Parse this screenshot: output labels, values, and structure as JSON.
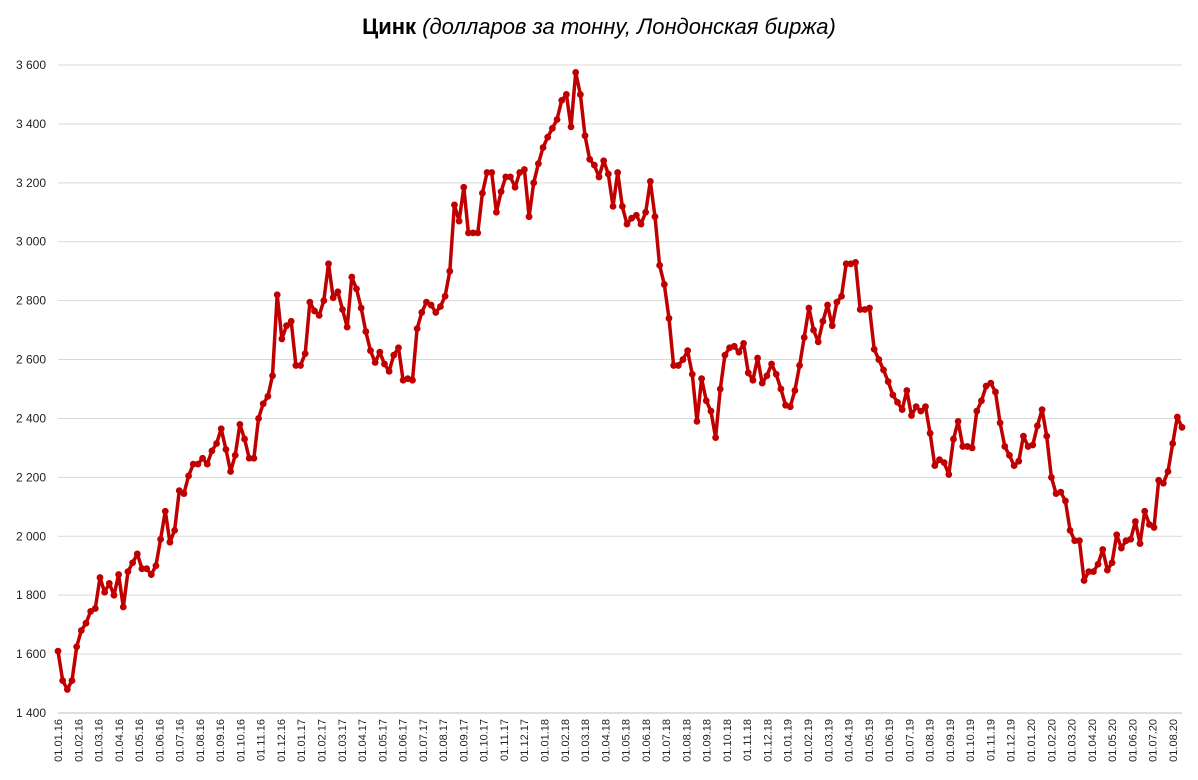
{
  "chart_data": {
    "type": "line",
    "title": "Цинк",
    "subtitle": "(долларов за тонну, Лондонская биржа)",
    "xlabel": "",
    "ylabel": "",
    "ylim": [
      1400,
      3600
    ],
    "y_ticks": [
      1400,
      1600,
      1800,
      2000,
      2200,
      2400,
      2600,
      2800,
      3000,
      3200,
      3400,
      3600
    ],
    "y_tick_labels": [
      "1 400",
      "1 600",
      "1 800",
      "2 000",
      "2 200",
      "2 400",
      "2 600",
      "2 800",
      "3 000",
      "3 200",
      "3 400",
      "3 600"
    ],
    "x_tick_labels": [
      "01.01.16",
      "01.02.16",
      "01.03.16",
      "01.04.16",
      "01.05.16",
      "01.06.16",
      "01.07.16",
      "01.08.16",
      "01.09.16",
      "01.10.16",
      "01.11.16",
      "01.12.16",
      "01.01.17",
      "01.02.17",
      "01.03.17",
      "01.04.17",
      "01.05.17",
      "01.06.17",
      "01.07.17",
      "01.08.17",
      "01.09.17",
      "01.10.17",
      "01.11.17",
      "01.12.17",
      "01.01.18",
      "01.02.18",
      "01.03.18",
      "01.04.18",
      "01.05.18",
      "01.06.18",
      "01.07.18",
      "01.08.18",
      "01.09.18",
      "01.10.18",
      "01.11.18",
      "01.12.18",
      "01.01.19",
      "01.02.19",
      "01.03.19",
      "01.04.19",
      "01.05.19",
      "01.06.19",
      "01.07.19",
      "01.08.19",
      "01.09.19",
      "01.10.19",
      "01.11.19",
      "01.12.19",
      "01.01.20",
      "01.02.20",
      "01.03.20",
      "01.04.20",
      "01.05.20",
      "01.06.20",
      "01.07.20",
      "01.08.20"
    ],
    "grid": true,
    "legend": "none",
    "series_color": "#C00000",
    "values": [
      1610,
      1510,
      1480,
      1510,
      1625,
      1680,
      1705,
      1745,
      1755,
      1860,
      1810,
      1840,
      1800,
      1870,
      1760,
      1880,
      1910,
      1940,
      1890,
      1890,
      1870,
      1900,
      1990,
      2085,
      1980,
      2020,
      2155,
      2145,
      2205,
      2245,
      2245,
      2265,
      2245,
      2290,
      2315,
      2365,
      2295,
      2220,
      2275,
      2380,
      2330,
      2265,
      2265,
      2400,
      2450,
      2475,
      2545,
      2820,
      2670,
      2715,
      2730,
      2580,
      2580,
      2620,
      2795,
      2765,
      2750,
      2800,
      2925,
      2810,
      2830,
      2770,
      2710,
      2880,
      2840,
      2775,
      2695,
      2630,
      2590,
      2625,
      2585,
      2560,
      2615,
      2640,
      2530,
      2535,
      2530,
      2705,
      2760,
      2795,
      2785,
      2760,
      2780,
      2815,
      2900,
      3125,
      3070,
      3185,
      3030,
      3030,
      3030,
      3165,
      3235,
      3235,
      3100,
      3170,
      3220,
      3220,
      3185,
      3235,
      3245,
      3085,
      3200,
      3265,
      3320,
      3355,
      3385,
      3415,
      3480,
      3500,
      3390,
      3575,
      3500,
      3360,
      3280,
      3260,
      3220,
      3275,
      3230,
      3120,
      3235,
      3120,
      3060,
      3080,
      3090,
      3060,
      3100,
      3205,
      3085,
      2920,
      2855,
      2740,
      2580,
      2580,
      2600,
      2630,
      2550,
      2390,
      2535,
      2460,
      2425,
      2335,
      2500,
      2615,
      2640,
      2645,
      2625,
      2655,
      2555,
      2530,
      2605,
      2520,
      2545,
      2585,
      2550,
      2500,
      2445,
      2440,
      2495,
      2580,
      2675,
      2775,
      2700,
      2660,
      2730,
      2785,
      2715,
      2795,
      2815,
      2925,
      2925,
      2930,
      2770,
      2770,
      2775,
      2635,
      2600,
      2565,
      2525,
      2480,
      2455,
      2430,
      2495,
      2410,
      2440,
      2425,
      2440,
      2350,
      2240,
      2260,
      2250,
      2210,
      2330,
      2390,
      2305,
      2305,
      2300,
      2425,
      2460,
      2510,
      2520,
      2490,
      2385,
      2305,
      2275,
      2240,
      2255,
      2340,
      2305,
      2310,
      2375,
      2430,
      2340,
      2200,
      2145,
      2150,
      2120,
      2020,
      1985,
      1985,
      1850,
      1880,
      1880,
      1905,
      1955,
      1885,
      1910,
      2005,
      1960,
      1985,
      1990,
      2050,
      1975,
      2085,
      2040,
      2030,
      2190,
      2180,
      2220,
      2315,
      2405,
      2370
    ]
  }
}
